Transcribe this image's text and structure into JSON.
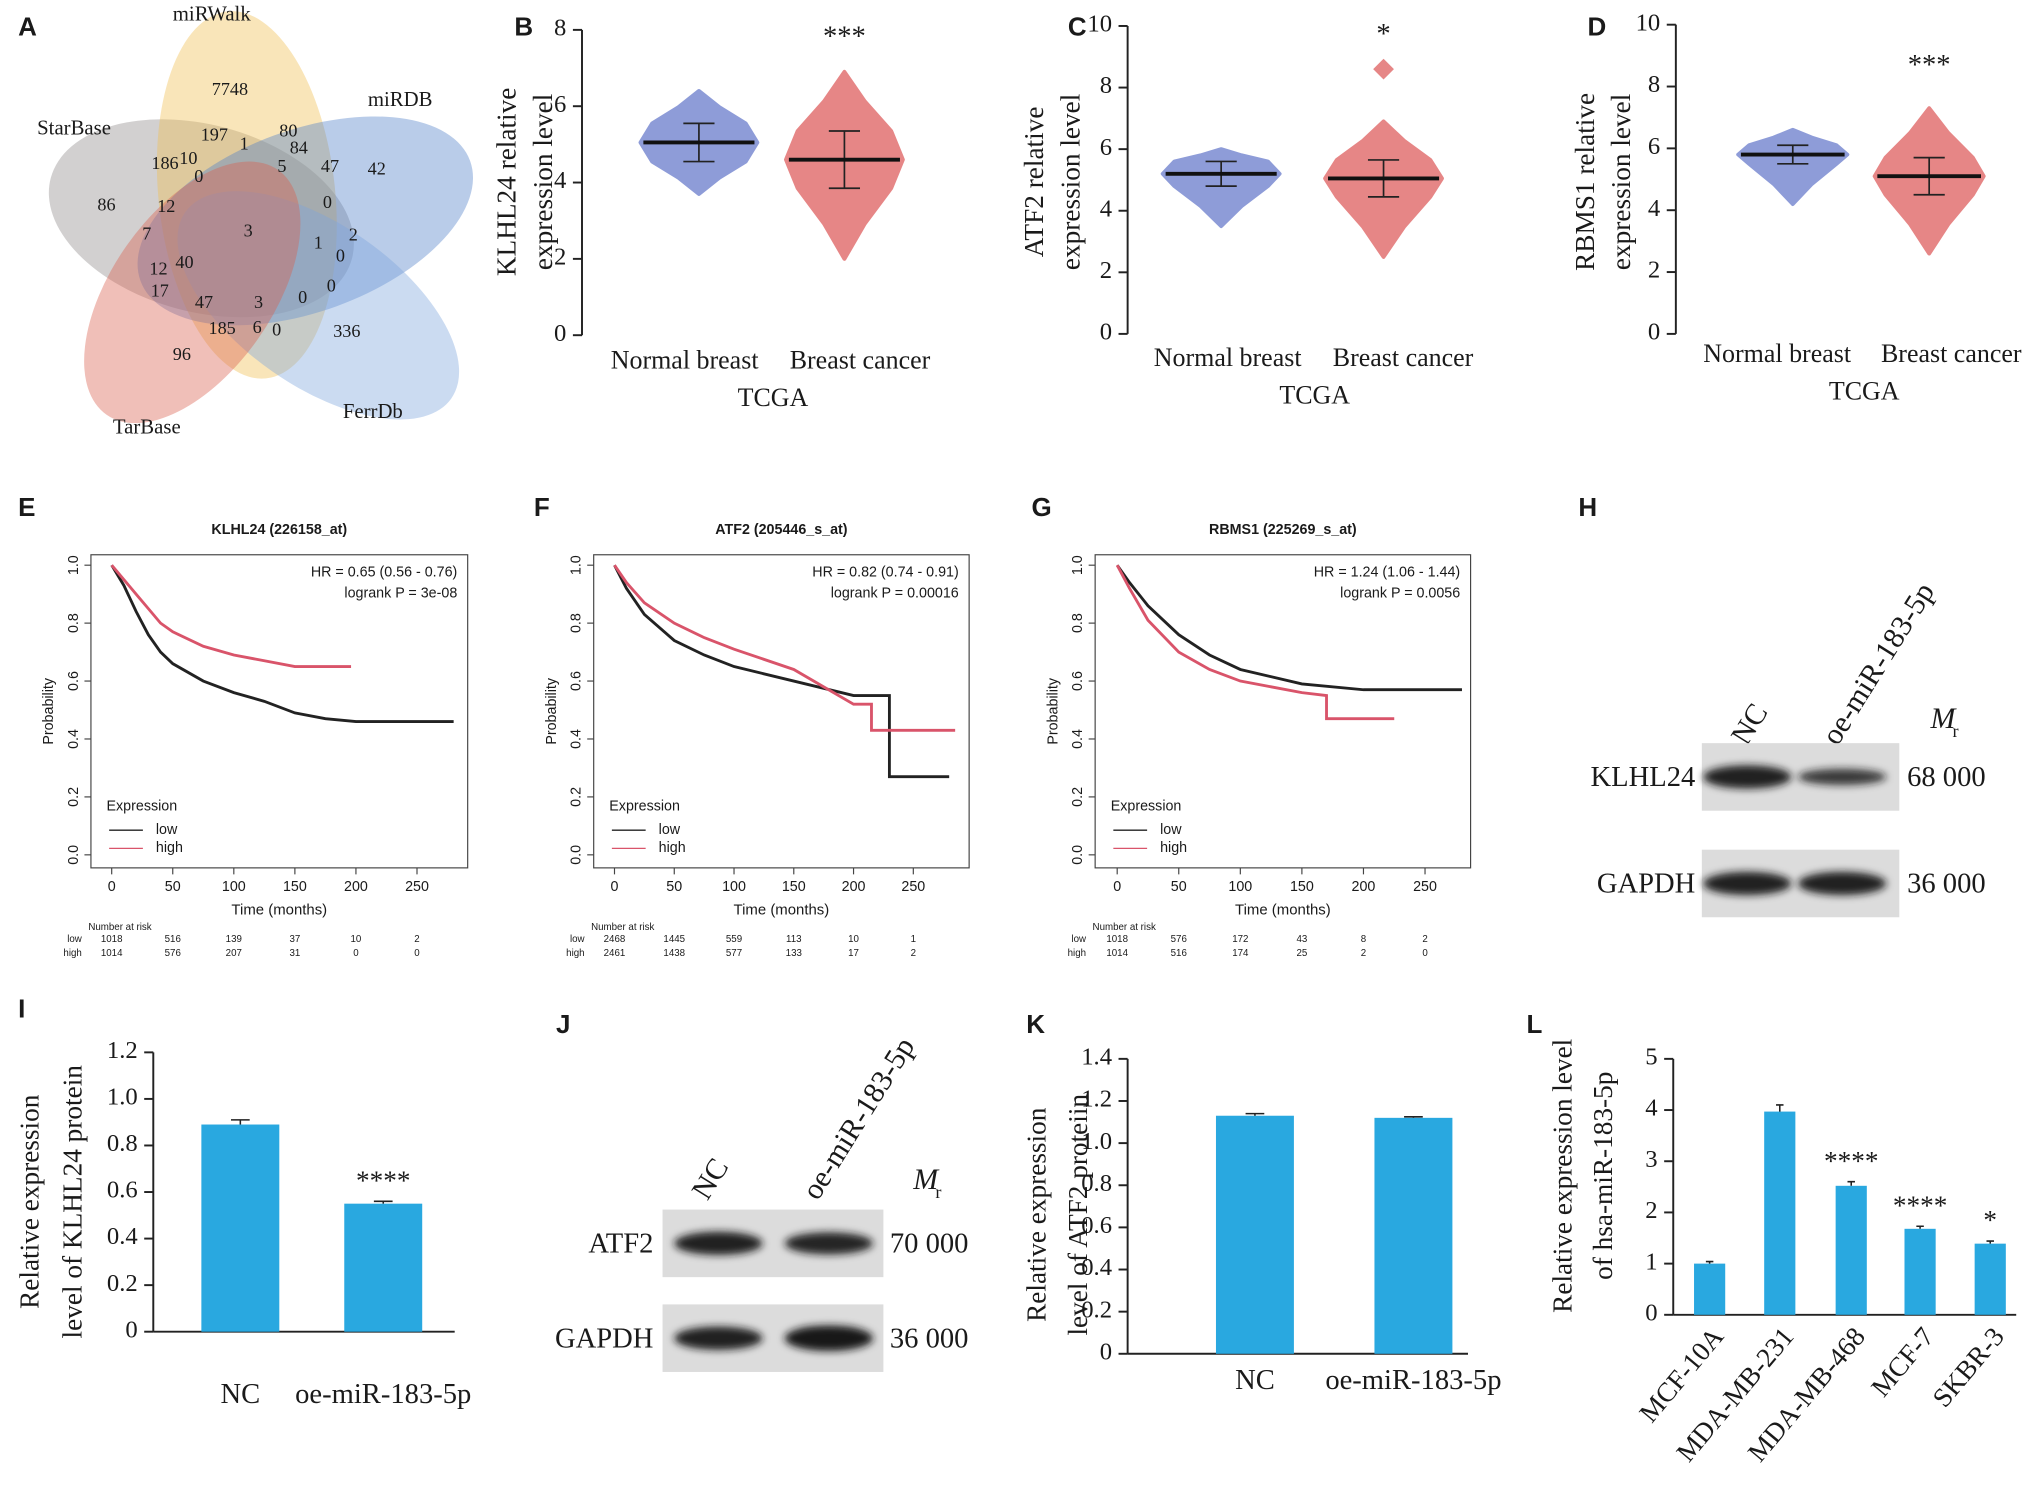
{
  "chart_data": [
    {
      "type": "venn",
      "label": "A",
      "sets": [
        {
          "name": "StarBase",
          "color": "#8f8a8a"
        },
        {
          "name": "miRWalk",
          "color": "#f0bd4f"
        },
        {
          "name": "miRDB",
          "color": "#4f80c7"
        },
        {
          "name": "FerrDb",
          "color": "#7ea6dc"
        },
        {
          "name": "TarBase",
          "color": "#d9604d"
        }
      ],
      "regions": [
        7748,
        197,
        1,
        80,
        84,
        5,
        47,
        42,
        186,
        10,
        0,
        86,
        12,
        0,
        7,
        3,
        1,
        2,
        0,
        12,
        40,
        17,
        0,
        47,
        3,
        0,
        185,
        6,
        0,
        336,
        96
      ]
    },
    {
      "type": "swarm",
      "label": "B",
      "ylabel": [
        "KLHL24 relative",
        "expression level"
      ],
      "xlabel": "TCGA",
      "groups": [
        {
          "name": "Normal breast",
          "color": "#8e9cd8",
          "mean": 5.05,
          "sd": 0.5,
          "min": 3.7,
          "max": 6.4
        },
        {
          "name": "Breast cancer",
          "color": "#e68686",
          "mean": 4.6,
          "sd": 0.75,
          "min": 2.0,
          "max": 6.9
        }
      ],
      "significance": "***",
      "ylim": [
        0,
        8
      ],
      "yticks": [
        0,
        2,
        4,
        6,
        8
      ]
    },
    {
      "type": "swarm",
      "label": "C",
      "ylabel": [
        "ATF2 relative",
        "expression level"
      ],
      "xlabel": "TCGA",
      "groups": [
        {
          "name": "Normal breast",
          "color": "#8e9cd8",
          "mean": 5.2,
          "sd": 0.4,
          "min": 3.5,
          "max": 6.0
        },
        {
          "name": "Breast cancer",
          "color": "#e68686",
          "mean": 5.05,
          "sd": 0.6,
          "min": 2.5,
          "max": 6.9,
          "outliers": [
            8.6
          ]
        }
      ],
      "significance": "*",
      "ylim": [
        0,
        10
      ],
      "yticks": [
        0,
        2,
        4,
        6,
        8,
        10
      ]
    },
    {
      "type": "swarm",
      "label": "D",
      "ylabel": [
        "RBMS1 relative",
        "expression level"
      ],
      "xlabel": "TCGA",
      "groups": [
        {
          "name": "Normal breast",
          "color": "#8e9cd8",
          "mean": 5.8,
          "sd": 0.3,
          "min": 4.2,
          "max": 6.6
        },
        {
          "name": "Breast cancer",
          "color": "#e68686",
          "mean": 5.1,
          "sd": 0.6,
          "min": 2.6,
          "max": 7.3
        }
      ],
      "significance": "***",
      "ylim": [
        0,
        10
      ],
      "yticks": [
        0,
        2,
        4,
        6,
        8,
        10
      ]
    },
    {
      "type": "km",
      "label": "E",
      "title": "KLHL24 (226158_at)",
      "stats": [
        "HR = 0.65 (0.56 - 0.76)",
        "logrank P = 3e-08"
      ],
      "ylabel": "Probability",
      "xlabel": "Time (months)",
      "legend_title": "Expression",
      "risk_title": "Number at risk",
      "xlim": [
        -17,
        291.5
      ],
      "xticks": [
        0,
        50,
        100,
        150,
        200,
        250
      ],
      "ylim": [
        -0.045,
        1.036
      ],
      "yticks": [
        {
          "value": 0,
          "label": "0.0"
        },
        0.2,
        0.4,
        0.6,
        0.8,
        {
          "value": 1,
          "label": "1.0"
        }
      ],
      "series": [
        {
          "name": "low",
          "color": "#222222",
          "x": [
            0,
            10,
            20,
            30,
            40,
            50,
            75,
            100,
            125,
            150,
            175,
            200,
            280
          ],
          "values": [
            1,
            0.93,
            0.84,
            0.76,
            0.7,
            0.66,
            0.6,
            0.56,
            0.53,
            0.49,
            0.47,
            0.46,
            0.46
          ],
          "at_risk": [
            1018,
            516,
            139,
            37,
            10,
            2
          ]
        },
        {
          "name": "high",
          "color": "#d9546a",
          "x": [
            0,
            10,
            20,
            30,
            40,
            50,
            75,
            100,
            125,
            150,
            196
          ],
          "values": [
            1,
            0.95,
            0.9,
            0.85,
            0.8,
            0.77,
            0.72,
            0.69,
            0.67,
            0.65,
            0.65
          ],
          "at_risk": [
            1014,
            576,
            207,
            31,
            0,
            0
          ]
        }
      ]
    },
    {
      "type": "km",
      "label": "F",
      "title": "ATF2 (205446_s_at)",
      "stats": [
        "HR = 0.82 (0.74 - 0.91)",
        "logrank P = 0.00016"
      ],
      "ylabel": "Probability",
      "xlabel": "Time (months)",
      "legend_title": "Expression",
      "risk_title": "Number at risk",
      "xlim": [
        -17.4,
        296.7
      ],
      "xticks": [
        0,
        50,
        100,
        150,
        200,
        250
      ],
      "ylim": [
        -0.045,
        1.036
      ],
      "yticks": [
        {
          "value": 0,
          "label": "0.0"
        },
        0.2,
        0.4,
        0.6,
        0.8,
        {
          "value": 1,
          "label": "1.0"
        }
      ],
      "series": [
        {
          "name": "low",
          "color": "#222222",
          "x": [
            0,
            10,
            25,
            50,
            75,
            100,
            150,
            200,
            230,
            230,
            280
          ],
          "values": [
            1,
            0.92,
            0.83,
            0.74,
            0.69,
            0.65,
            0.6,
            0.55,
            0.55,
            0.27,
            0.27
          ],
          "at_risk": [
            2468,
            1445,
            559,
            113,
            10,
            1
          ]
        },
        {
          "name": "high",
          "color": "#d9546a",
          "x": [
            0,
            10,
            25,
            50,
            75,
            100,
            150,
            200,
            215,
            215,
            285
          ],
          "values": [
            1,
            0.94,
            0.87,
            0.8,
            0.75,
            0.71,
            0.64,
            0.52,
            0.52,
            0.43,
            0.43
          ],
          "at_risk": [
            2461,
            1438,
            577,
            133,
            17,
            2
          ]
        }
      ]
    },
    {
      "type": "km",
      "label": "G",
      "title": "RBMS1 (225269_s_at)",
      "stats": [
        "HR = 1.24 (1.06 - 1.44)",
        "logrank P = 0.0056"
      ],
      "ylabel": "Probability",
      "xlabel": "Time (months)",
      "legend_title": "Expression",
      "risk_title": "Number at risk",
      "xlim": [
        -17.9,
        287
      ],
      "xticks": [
        0,
        50,
        100,
        150,
        200,
        250
      ],
      "ylim": [
        -0.045,
        1.036
      ],
      "yticks": [
        {
          "value": 0,
          "label": "0.0"
        },
        0.2,
        0.4,
        0.6,
        0.8,
        {
          "value": 1,
          "label": "1.0"
        }
      ],
      "series": [
        {
          "name": "low",
          "color": "#222222",
          "x": [
            0,
            10,
            25,
            50,
            75,
            100,
            150,
            200,
            280
          ],
          "values": [
            1,
            0.94,
            0.86,
            0.76,
            0.69,
            0.64,
            0.59,
            0.57,
            0.57
          ],
          "at_risk": [
            1018,
            576,
            172,
            43,
            8,
            2
          ]
        },
        {
          "name": "high",
          "color": "#d9546a",
          "x": [
            0,
            10,
            25,
            50,
            75,
            100,
            150,
            170,
            170,
            225
          ],
          "values": [
            1,
            0.92,
            0.81,
            0.7,
            0.64,
            0.6,
            0.56,
            0.55,
            0.47,
            0.47
          ],
          "at_risk": [
            1014,
            516,
            174,
            25,
            2,
            0
          ]
        }
      ]
    },
    {
      "type": "blot",
      "label": "H",
      "lanes": [
        "NC",
        "oe-miR-183-5p"
      ],
      "mr": "M",
      "mr_sub": "r",
      "rows": [
        {
          "name": "KLHL24",
          "mw": "68 000"
        },
        {
          "name": "GAPDH",
          "mw": "36 000"
        }
      ]
    },
    {
      "type": "bar",
      "label": "I",
      "ylabel": [
        "Relative expression",
        "level of KLHL24 protein"
      ],
      "color": "#29a8e0",
      "categories": [
        "NC",
        "oe-miR-183-5p"
      ],
      "values": [
        0.89,
        0.55
      ],
      "errors": [
        0.02,
        0.01
      ],
      "annotations": [
        null,
        "****"
      ],
      "ylim": [
        0,
        1.2
      ],
      "yticks": [
        0,
        0.2,
        0.4,
        0.6,
        0.8,
        {
          "value": 1,
          "label": "1.0"
        },
        1.2
      ]
    },
    {
      "type": "blot",
      "label": "J",
      "lanes": [
        "NC",
        "oe-miR-183-5p"
      ],
      "mr": "M",
      "mr_sub": "r",
      "rows": [
        {
          "name": "ATF2",
          "mw": "70 000"
        },
        {
          "name": "GAPDH",
          "mw": "36 000"
        }
      ]
    },
    {
      "type": "bar",
      "label": "K",
      "ylabel": [
        "Relative expression",
        "level of ATF2 proteiin"
      ],
      "color": "#29a8e0",
      "categories": [
        "NC",
        "oe-miR-183-5p"
      ],
      "values": [
        1.13,
        1.12
      ],
      "errors": [
        0.01,
        0.005
      ],
      "annotations": [
        null,
        null
      ],
      "ylim": [
        0,
        1.4
      ],
      "yticks": [
        0,
        0.2,
        0.4,
        0.6,
        0.8,
        {
          "value": 1,
          "label": "1.0"
        },
        1.2,
        1.4
      ]
    },
    {
      "type": "bar",
      "label": "L",
      "ylabel": [
        "Relative expression level",
        "of hsa-miR-183-5p"
      ],
      "color": "#29a8e0",
      "categories": [
        "MCF-10A",
        "MDA-MB-231",
        "MDA-MB-468",
        "MCF-7",
        "SKBR-3"
      ],
      "values": [
        1.0,
        3.97,
        2.52,
        1.68,
        1.39
      ],
      "errors": [
        0.04,
        0.13,
        0.08,
        0.05,
        0.05
      ],
      "annotations": [
        null,
        null,
        "****",
        "****",
        "*"
      ],
      "ylim": [
        0,
        5
      ],
      "yticks": [
        0,
        1,
        2,
        3,
        4,
        5
      ]
    }
  ]
}
